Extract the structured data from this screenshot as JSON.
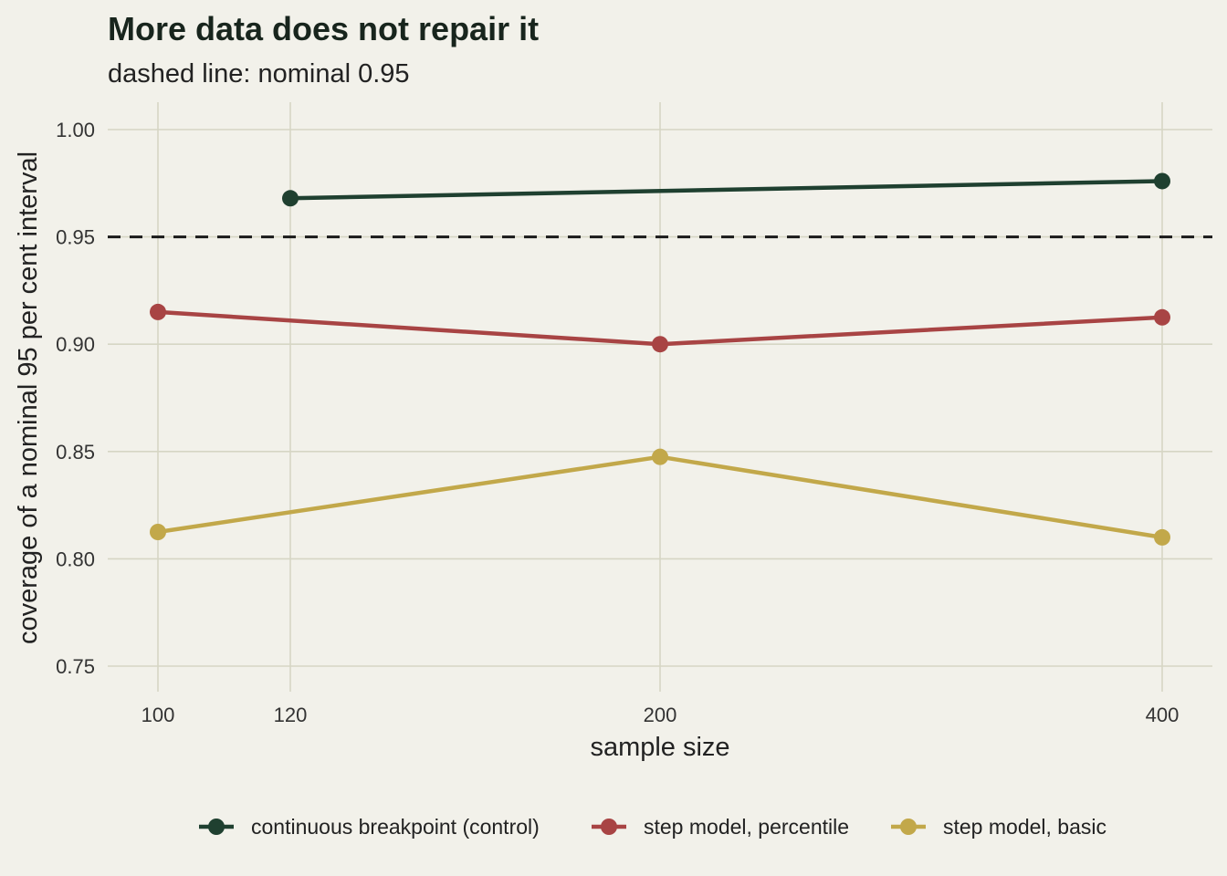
{
  "chart_data": {
    "type": "line",
    "title": "More data does not repair it",
    "subtitle": "dashed line: nominal 0.95",
    "xlabel": "sample size",
    "ylabel": "coverage of a nominal 95 per cent interval",
    "x_ticks": [
      100,
      120,
      200,
      400
    ],
    "y_ticks": [
      "0.75",
      "0.80",
      "0.85",
      "0.90",
      "0.95",
      "1.00"
    ],
    "ylim": [
      0.75,
      1.0
    ],
    "x_scale": "ordinal-like (positions 100, 120, 200, 400)",
    "reference_line": {
      "y": 0.95,
      "style": "dashed",
      "color": "#1a1a1a"
    },
    "grid": true,
    "legend_position": "bottom",
    "series": [
      {
        "name": "continuous breakpoint (control)",
        "color": "#1f4030",
        "points": [
          {
            "x": 120,
            "y": 0.968
          },
          {
            "x": 400,
            "y": 0.976
          }
        ]
      },
      {
        "name": "step model, percentile",
        "color": "#a84444",
        "points": [
          {
            "x": 100,
            "y": 0.915
          },
          {
            "x": 200,
            "y": 0.9
          },
          {
            "x": 400,
            "y": 0.9125
          }
        ]
      },
      {
        "name": "step model, basic",
        "color": "#c2a84a",
        "points": [
          {
            "x": 100,
            "y": 0.8125
          },
          {
            "x": 200,
            "y": 0.8475
          },
          {
            "x": 400,
            "y": 0.81
          }
        ]
      }
    ]
  }
}
